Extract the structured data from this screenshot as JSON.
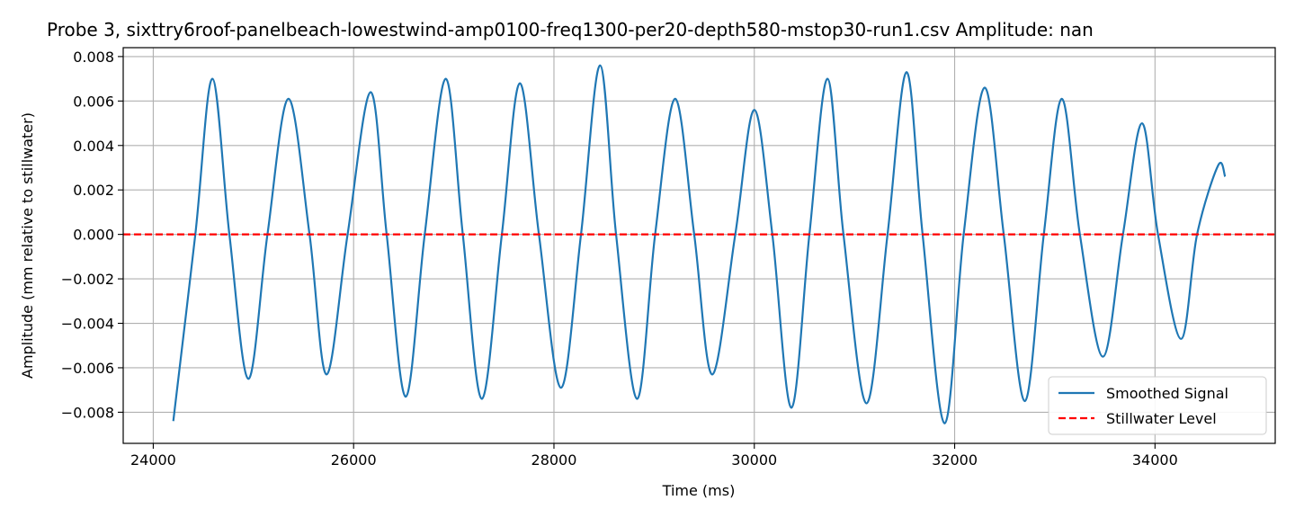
{
  "chart_data": {
    "type": "line",
    "title": "Probe 3, sixttry6roof-panelbeach-lowestwind-amp0100-freq1300-per20-depth580-mstop30-run1.csv Amplitude: nan",
    "xlabel": "Time (ms)",
    "ylabel": "Amplitude (mm relative to stillwater)",
    "xlim": [
      23700,
      35200
    ],
    "ylim": [
      -0.0094,
      0.0084
    ],
    "xticks": [
      24000,
      26000,
      28000,
      30000,
      32000,
      34000
    ],
    "xtick_labels": [
      "24000",
      "26000",
      "28000",
      "30000",
      "32000",
      "34000"
    ],
    "yticks": [
      -0.008,
      -0.006,
      -0.004,
      -0.002,
      0.0,
      0.002,
      0.004,
      0.006,
      0.008
    ],
    "ytick_labels": [
      "−0.008",
      "−0.006",
      "−0.004",
      "−0.002",
      "0.000",
      "0.002",
      "0.004",
      "0.006",
      "0.008"
    ],
    "grid": true,
    "legend_position": "bottom-right",
    "series": [
      {
        "name": "Smoothed Signal",
        "color": "#1f77b4",
        "style": "solid",
        "points": [
          [
            24200,
            -0.0084
          ],
          [
            24420,
            0.0
          ],
          [
            24590,
            0.007
          ],
          [
            24760,
            0.0
          ],
          [
            24950,
            -0.0065
          ],
          [
            25140,
            0.0
          ],
          [
            25350,
            0.0061
          ],
          [
            25560,
            0.0
          ],
          [
            25730,
            -0.0063
          ],
          [
            25940,
            0.0
          ],
          [
            26170,
            0.0064
          ],
          [
            26330,
            0.0
          ],
          [
            26520,
            -0.0073
          ],
          [
            26710,
            0.0
          ],
          [
            26920,
            0.007
          ],
          [
            27090,
            0.0
          ],
          [
            27280,
            -0.0074
          ],
          [
            27480,
            0.0
          ],
          [
            27660,
            0.0068
          ],
          [
            27850,
            0.0
          ],
          [
            28070,
            -0.0069
          ],
          [
            28270,
            0.0
          ],
          [
            28460,
            0.0076
          ],
          [
            28620,
            0.0
          ],
          [
            28830,
            -0.0074
          ],
          [
            29010,
            0.0
          ],
          [
            29210,
            0.0061
          ],
          [
            29400,
            0.0
          ],
          [
            29580,
            -0.0063
          ],
          [
            29810,
            0.0
          ],
          [
            30000,
            0.0056
          ],
          [
            30180,
            0.0
          ],
          [
            30370,
            -0.0078
          ],
          [
            30550,
            0.0
          ],
          [
            30730,
            0.007
          ],
          [
            30890,
            0.0
          ],
          [
            31120,
            -0.0076
          ],
          [
            31330,
            0.0
          ],
          [
            31520,
            0.0073
          ],
          [
            31680,
            0.0
          ],
          [
            31900,
            -0.0085
          ],
          [
            32090,
            0.0
          ],
          [
            32300,
            0.0066
          ],
          [
            32490,
            0.0
          ],
          [
            32700,
            -0.0075
          ],
          [
            32890,
            0.0
          ],
          [
            33070,
            0.0061
          ],
          [
            33250,
            0.0
          ],
          [
            33480,
            -0.0055
          ],
          [
            33680,
            0.0
          ],
          [
            33870,
            0.005
          ],
          [
            34030,
            0.0
          ],
          [
            34260,
            -0.0047
          ],
          [
            34420,
            0.0
          ],
          [
            34630,
            0.0031
          ],
          [
            34700,
            0.0026
          ]
        ]
      },
      {
        "name": "Stillwater Level",
        "color": "#ff0000",
        "style": "dashed",
        "points": [
          [
            23700,
            0.0
          ],
          [
            35200,
            0.0
          ]
        ]
      }
    ]
  }
}
